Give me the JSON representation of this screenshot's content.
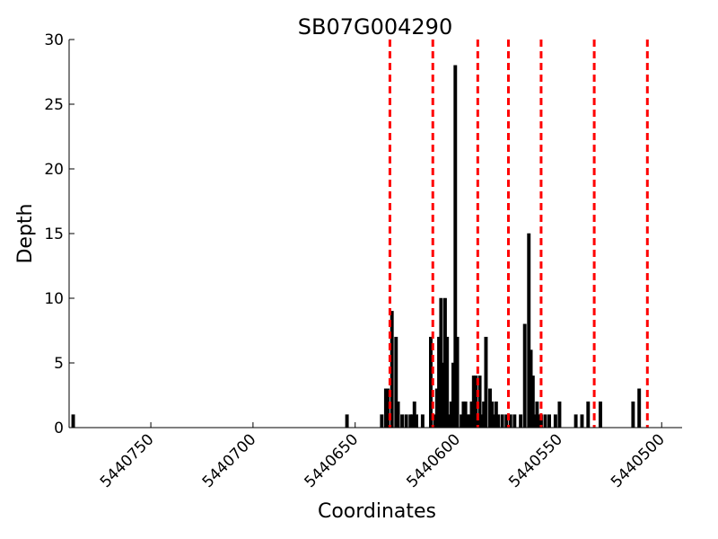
{
  "chart_data": {
    "type": "bar",
    "title": "SB07G004290",
    "xlabel": "Coordinates",
    "ylabel": "Depth",
    "xlim": [
      5440790,
      5440490
    ],
    "ylim": [
      0,
      30
    ],
    "x_reversed": true,
    "x_ticks": [
      {
        "value": 5440750,
        "label": "5440750"
      },
      {
        "value": 5440700,
        "label": "5440700"
      },
      {
        "value": 5440650,
        "label": "5440650"
      },
      {
        "value": 5440600,
        "label": "5440600"
      },
      {
        "value": 5440550,
        "label": "5440550"
      },
      {
        "value": 5440500,
        "label": "5440500"
      }
    ],
    "y_ticks": [
      {
        "value": 0,
        "label": "0"
      },
      {
        "value": 5,
        "label": "5"
      },
      {
        "value": 10,
        "label": "10"
      },
      {
        "value": 15,
        "label": "15"
      },
      {
        "value": 20,
        "label": "20"
      },
      {
        "value": 25,
        "label": "25"
      },
      {
        "value": 30,
        "label": "30"
      }
    ],
    "grid": false,
    "bar_color": "#000000",
    "bar_edge_color": "#000000",
    "series": [
      {
        "x": [
          5440788,
          5440654,
          5440637,
          5440635,
          5440634,
          5440632,
          5440630,
          5440629,
          5440627,
          5440625,
          5440623,
          5440622,
          5440621,
          5440620,
          5440617,
          5440613,
          5440611,
          5440610,
          5440609,
          5440608,
          5440607,
          5440606,
          5440605,
          5440604,
          5440603,
          5440602,
          5440601,
          5440600,
          5440598,
          5440597,
          5440596,
          5440595,
          5440594,
          5440593,
          5440592,
          5440591,
          5440590,
          5440589,
          5440588,
          5440587,
          5440586,
          5440584,
          5440583,
          5440582,
          5440581,
          5440580,
          5440578,
          5440576,
          5440574,
          5440572,
          5440569,
          5440567,
          5440565,
          5440564,
          5440563,
          5440562,
          5440561,
          5440560,
          5440559,
          5440557,
          5440555,
          5440552,
          5440550,
          5440542,
          5440539,
          5440536,
          5440530,
          5440514,
          5440511
        ],
        "values": [
          1,
          1,
          1,
          3,
          3,
          9,
          7,
          2,
          1,
          1,
          1,
          1,
          2,
          1,
          1,
          7,
          1,
          3,
          7,
          10,
          5,
          10,
          7,
          1,
          2,
          5,
          28,
          7,
          1,
          2,
          2,
          1,
          1,
          2,
          4,
          4,
          1,
          4,
          1,
          2,
          7,
          3,
          2,
          1,
          2,
          1,
          1,
          1,
          1,
          1,
          1,
          8,
          15,
          6,
          4,
          1,
          2,
          1,
          1,
          1,
          1,
          1,
          2,
          1,
          1,
          2,
          2,
          2,
          3
        ]
      }
    ],
    "vlines": {
      "color": "#ff0000",
      "style": "dashed",
      "x": [
        5440633,
        5440612,
        5440590,
        5440575,
        5440559,
        5440533,
        5440507
      ]
    }
  }
}
